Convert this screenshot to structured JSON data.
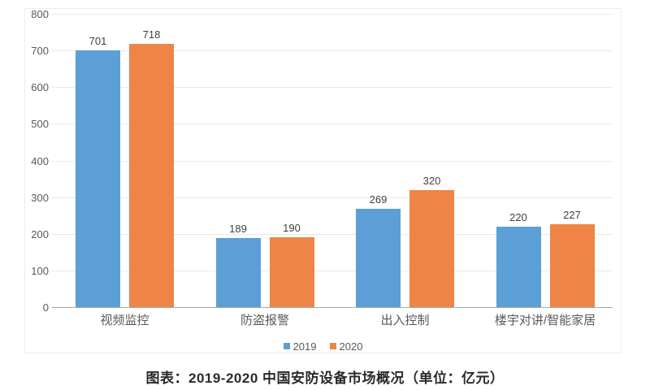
{
  "chart_data": {
    "type": "bar",
    "title": "图表：2019-2020 中国安防设备市场概况（单位：亿元）",
    "categories": [
      "视频监控",
      "防盗报警",
      "出入控制",
      "楼宇对讲/智能家居"
    ],
    "series": [
      {
        "name": "2019",
        "color": "#5b9fd6",
        "values": [
          701,
          189,
          269,
          220
        ]
      },
      {
        "name": "2020",
        "color": "#ee8445",
        "values": [
          718,
          190,
          320,
          227
        ]
      }
    ],
    "ylim": [
      0,
      800
    ],
    "ytick_interval": 100,
    "ytick_labels": [
      "0",
      "100",
      "200",
      "300",
      "400",
      "500",
      "600",
      "700",
      "800"
    ],
    "xlabel": "",
    "ylabel": "",
    "grid": true,
    "legend_position": "bottom",
    "plot_background": "#ffffff",
    "gridline_color": "#e9e9e9",
    "axis_line_color": "#a9a9a9",
    "label_color": "#595959",
    "value_label_color": "#3f3f3f",
    "title_color": "#2a2a2a"
  }
}
